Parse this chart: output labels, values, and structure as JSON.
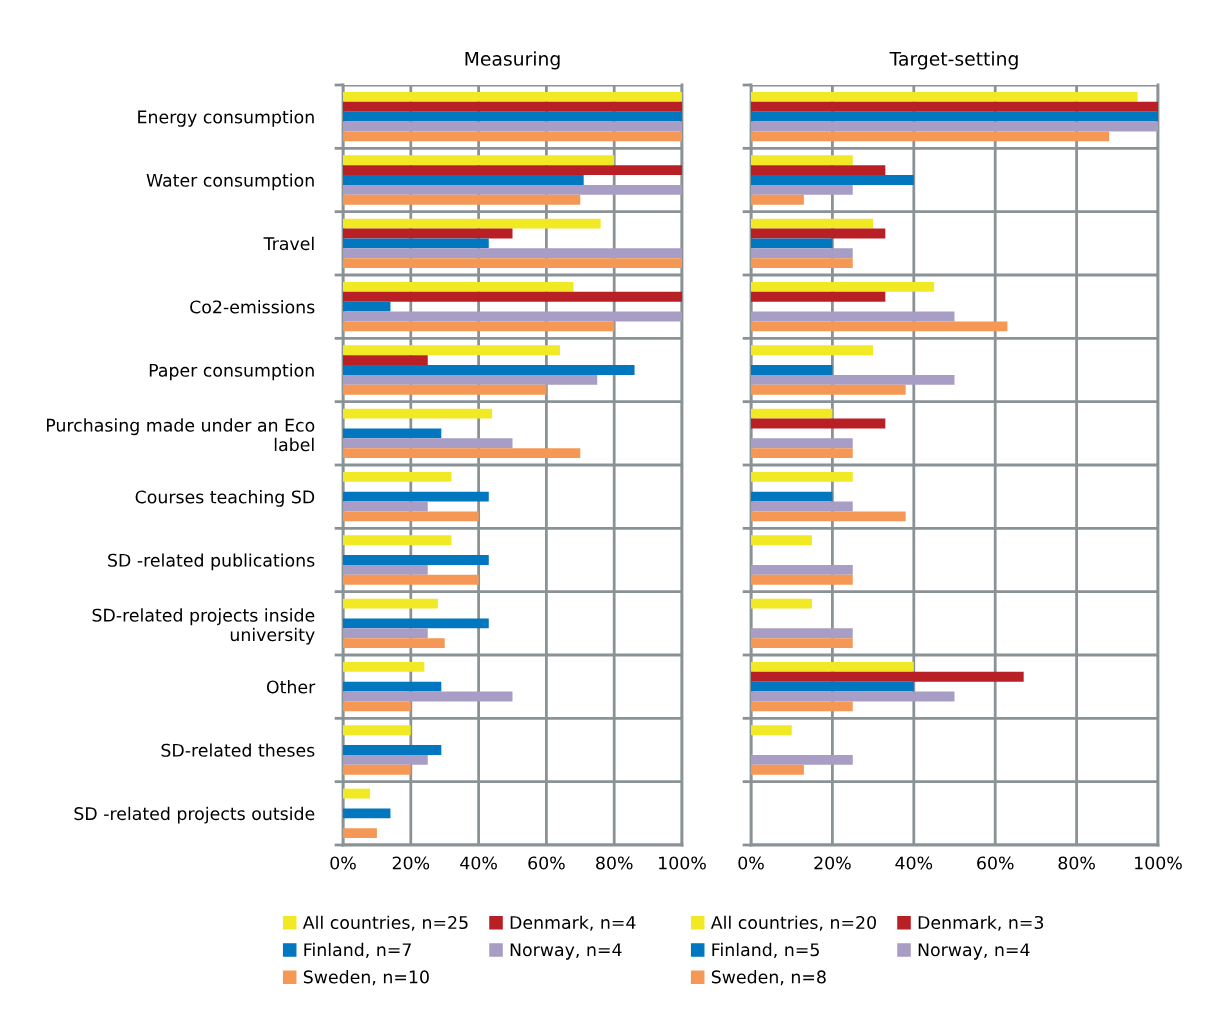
{
  "chart_data": [
    {
      "type": "bar",
      "orientation": "horizontal",
      "title": "Measuring",
      "categories": [
        "Energy consumption",
        "Water consumption",
        "Travel",
        "Co2-emissions",
        "Paper consumption",
        "Purchasing made under an Eco label",
        "Courses teaching SD",
        "SD -related publications",
        "SD-related projects inside university",
        "Other",
        "SD-related theses",
        "SD -related projects outside"
      ],
      "series": [
        {
          "name": "All countries, n=25",
          "color": "#f0e924",
          "values": [
            100,
            80,
            76,
            68,
            64,
            44,
            32,
            32,
            28,
            24,
            20,
            8
          ]
        },
        {
          "name": "Denmark, n=4",
          "color": "#b82025",
          "values": [
            100,
            100,
            50,
            100,
            25,
            0,
            0,
            0,
            0,
            0,
            0,
            0
          ]
        },
        {
          "name": "Finland, n=7",
          "color": "#0077bf",
          "values": [
            100,
            71,
            43,
            14,
            86,
            29,
            43,
            43,
            43,
            29,
            29,
            14
          ]
        },
        {
          "name": "Norway, n=4",
          "color": "#a89dc4",
          "values": [
            100,
            100,
            100,
            100,
            75,
            50,
            25,
            25,
            25,
            50,
            25,
            0
          ]
        },
        {
          "name": "Sweden, n=10",
          "color": "#f59855",
          "values": [
            100,
            70,
            100,
            80,
            60,
            70,
            40,
            40,
            30,
            20,
            20,
            10
          ]
        }
      ],
      "xlim": [
        0,
        100
      ],
      "xticks": [
        {
          "value": 0,
          "label": "0%"
        },
        {
          "value": 20,
          "label": "20%"
        },
        {
          "value": 40,
          "label": "40%"
        },
        {
          "value": 60,
          "label": "60%"
        },
        {
          "value": 80,
          "label": "80%"
        },
        {
          "value": 100,
          "label": "100%"
        }
      ],
      "grid": true,
      "legend": "bottom"
    },
    {
      "type": "bar",
      "orientation": "horizontal",
      "title": "Target-setting",
      "categories": [
        null,
        null,
        null,
        null,
        null,
        null,
        null,
        null,
        null,
        null,
        null,
        null
      ],
      "series": [
        {
          "name": "All countries, n=20",
          "color": "#f0e924",
          "values": [
            95,
            25,
            30,
            45,
            30,
            20,
            25,
            15,
            15,
            40,
            10,
            0
          ]
        },
        {
          "name": "Denmark, n=3",
          "color": "#b82025",
          "values": [
            100,
            33,
            33,
            33,
            0,
            33,
            0,
            0,
            0,
            67,
            0,
            0
          ]
        },
        {
          "name": "Finland, n=5",
          "color": "#0077bf",
          "values": [
            100,
            40,
            20,
            0,
            20,
            0,
            20,
            0,
            0,
            40,
            0,
            0
          ]
        },
        {
          "name": "Norway, n=4",
          "color": "#a89dc4",
          "values": [
            100,
            25,
            25,
            50,
            50,
            25,
            25,
            25,
            25,
            50,
            25,
            0
          ]
        },
        {
          "name": "Sweden, n=8",
          "color": "#f59855",
          "values": [
            88,
            13,
            25,
            63,
            38,
            25,
            38,
            25,
            25,
            25,
            13,
            0
          ]
        }
      ],
      "xlim": [
        0,
        100
      ],
      "xticks": [
        {
          "value": 0,
          "label": "0%"
        },
        {
          "value": 20,
          "label": "20%"
        },
        {
          "value": 40,
          "label": "40%"
        },
        {
          "value": 60,
          "label": "60%"
        },
        {
          "value": 80,
          "label": "80%"
        },
        {
          "value": 100,
          "label": "100%"
        }
      ],
      "grid": true,
      "legend": "bottom",
      "tick_labels": "x"
    }
  ]
}
